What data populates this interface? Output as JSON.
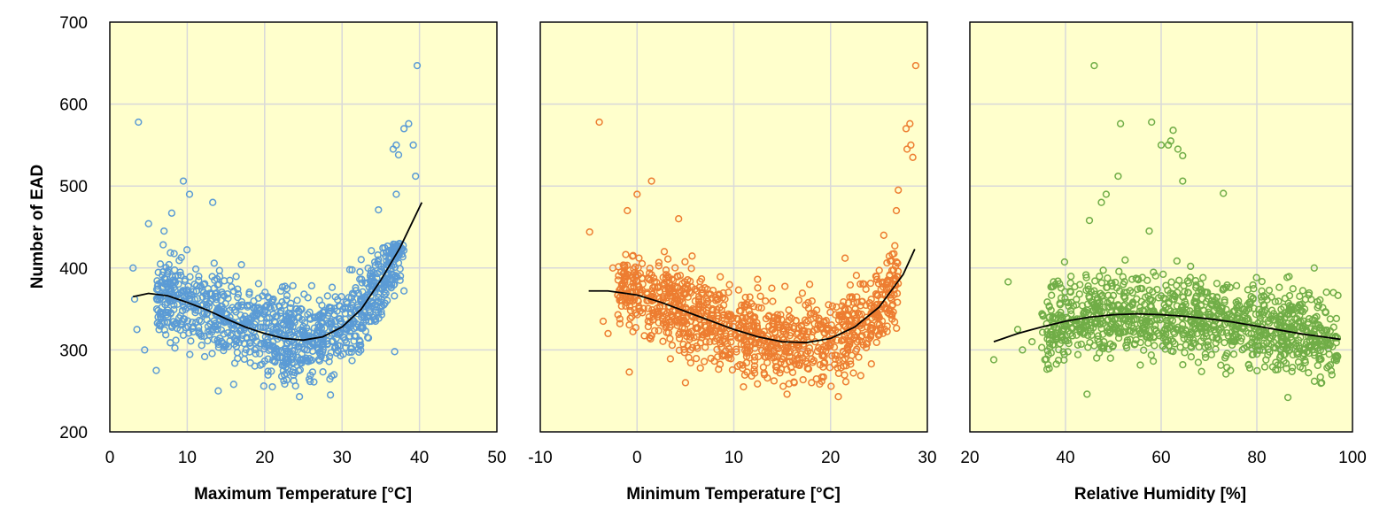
{
  "chart_data": [
    {
      "type": "scatter",
      "xlabel": "Maximum Temperature [°C]",
      "ylabel": "Number of EAD",
      "xlim": [
        0,
        50
      ],
      "ylim": [
        200,
        700
      ],
      "xticks": [
        0,
        10,
        20,
        30,
        40,
        50
      ],
      "yticks": [
        200,
        300,
        400,
        500,
        600,
        700
      ],
      "background": "#FFFFCC",
      "point_color": "#5B9BD5",
      "trend_color": "#000000",
      "trend": {
        "x": [
          3,
          5,
          7.5,
          10,
          12.5,
          15,
          17.5,
          20,
          22.5,
          25,
          27.5,
          30,
          32.5,
          35,
          37.5,
          40.3
        ],
        "y": [
          365,
          369,
          366,
          358,
          349,
          338,
          328,
          320,
          314,
          312,
          316,
          328,
          350,
          385,
          425,
          480
        ]
      },
      "cloud": {
        "x_range": [
          6,
          38
        ],
        "y_center": "trend",
        "y_spread": 45
      },
      "outliers": [
        [
          3.7,
          578
        ],
        [
          39.7,
          647
        ],
        [
          38.6,
          576
        ],
        [
          38,
          570
        ],
        [
          39.2,
          550
        ],
        [
          37,
          550
        ],
        [
          36.6,
          545
        ],
        [
          37.3,
          538
        ],
        [
          39.5,
          512
        ],
        [
          9.5,
          506
        ],
        [
          10.3,
          490
        ],
        [
          13.3,
          480
        ],
        [
          8,
          467
        ],
        [
          5,
          454
        ],
        [
          7,
          445
        ],
        [
          17,
          404
        ],
        [
          6,
          275
        ],
        [
          4.5,
          300
        ],
        [
          14,
          250
        ],
        [
          24.5,
          243
        ],
        [
          28.5,
          245
        ],
        [
          16,
          258
        ],
        [
          21,
          255
        ],
        [
          3.2,
          362
        ],
        [
          3.5,
          325
        ],
        [
          3,
          400
        ],
        [
          36.8,
          298
        ],
        [
          38,
          372
        ],
        [
          34.7,
          471
        ],
        [
          37,
          490
        ]
      ]
    },
    {
      "type": "scatter",
      "xlabel": "Minimum Temperature [°C]",
      "ylabel": "",
      "xlim": [
        -10,
        30
      ],
      "ylim": [
        200,
        700
      ],
      "xticks": [
        -10,
        0,
        10,
        20,
        30
      ],
      "yticks": [
        200,
        300,
        400,
        500,
        600,
        700
      ],
      "background": "#FFFFCC",
      "point_color": "#ED7D31",
      "trend_color": "#000000",
      "trend": {
        "x": [
          -5,
          -3,
          0,
          2.5,
          5,
          7.5,
          10,
          12.5,
          15,
          17.5,
          20,
          22.5,
          25,
          27.5,
          28.7
        ],
        "y": [
          372,
          372,
          367,
          358,
          347,
          336,
          325,
          316,
          310,
          309,
          314,
          328,
          352,
          392,
          423
        ]
      },
      "cloud": {
        "x_range": [
          -2,
          27
        ],
        "y_center": "trend",
        "y_spread": 45
      },
      "outliers": [
        [
          -3.9,
          578
        ],
        [
          28.8,
          647
        ],
        [
          28.2,
          576
        ],
        [
          27.8,
          570
        ],
        [
          28.3,
          550
        ],
        [
          27.9,
          545
        ],
        [
          28.5,
          535
        ],
        [
          1.5,
          506
        ],
        [
          0,
          490
        ],
        [
          -1,
          470
        ],
        [
          -4.9,
          444
        ],
        [
          -2.5,
          400
        ],
        [
          4.3,
          460
        ],
        [
          -3.5,
          335
        ],
        [
          -0.8,
          273
        ],
        [
          3,
          330
        ],
        [
          5,
          260
        ],
        [
          20.8,
          243
        ],
        [
          15.5,
          246
        ],
        [
          11,
          255
        ],
        [
          27,
          495
        ],
        [
          26.8,
          470
        ],
        [
          25.5,
          440
        ],
        [
          21.5,
          412
        ],
        [
          -3,
          320
        ]
      ]
    },
    {
      "type": "scatter",
      "xlabel": "Relative Humidity [%]",
      "ylabel": "",
      "xlim": [
        20,
        100
      ],
      "ylim": [
        200,
        700
      ],
      "xticks": [
        20,
        40,
        60,
        80,
        100
      ],
      "yticks": [
        200,
        300,
        400,
        500,
        600,
        700
      ],
      "background": "#FFFFCC",
      "point_color": "#70AD47",
      "trend_color": "#000000",
      "trend": {
        "x": [
          25,
          30,
          35,
          40,
          45,
          50,
          55,
          60,
          65,
          70,
          75,
          80,
          85,
          90,
          95,
          97.5
        ],
        "y": [
          310,
          320,
          328,
          335,
          340,
          343,
          344,
          343,
          341,
          338,
          334,
          329,
          324,
          319,
          315,
          313
        ]
      },
      "cloud": {
        "x_range": [
          35,
          97
        ],
        "y_center": "trend",
        "y_spread": 45
      },
      "outliers": [
        [
          46,
          647
        ],
        [
          58,
          578
        ],
        [
          51.5,
          576
        ],
        [
          62.5,
          568
        ],
        [
          62,
          555
        ],
        [
          61.5,
          550
        ],
        [
          63.5,
          545
        ],
        [
          64.5,
          537
        ],
        [
          60,
          550
        ],
        [
          51,
          512
        ],
        [
          64.5,
          506
        ],
        [
          73,
          491
        ],
        [
          48.5,
          490
        ],
        [
          47.5,
          480
        ],
        [
          45,
          458
        ],
        [
          25,
          288
        ],
        [
          28,
          383
        ],
        [
          30,
          325
        ],
        [
          31,
          300
        ],
        [
          33,
          310
        ],
        [
          86.5,
          242
        ],
        [
          44.5,
          246
        ],
        [
          74.5,
          275
        ],
        [
          92,
          400
        ],
        [
          96,
          370
        ],
        [
          95,
          280
        ],
        [
          57.5,
          445
        ]
      ]
    }
  ]
}
